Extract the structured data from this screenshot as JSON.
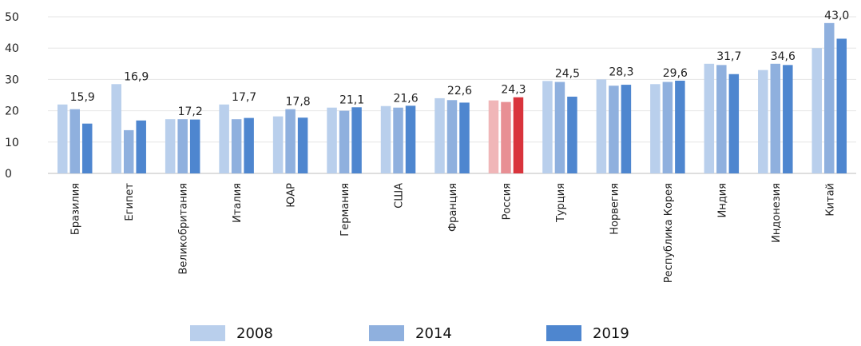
{
  "chart_data": {
    "type": "bar",
    "title": "",
    "xlabel": "",
    "ylabel": "",
    "ylim": [
      0,
      50
    ],
    "yticks": [
      0,
      10,
      20,
      30,
      40,
      50
    ],
    "grid": true,
    "legend_position": "bottom",
    "categories": [
      "Бразилия",
      "Египет",
      "Великобритания",
      "Италия",
      "ЮАР",
      "Германия",
      "США",
      "Франция",
      "Россия",
      "Турция",
      "Норвегия",
      "Республика Корея",
      "Индия",
      "Индонезия",
      "Китай"
    ],
    "series": [
      {
        "name": "2008",
        "color": "#b9cfec",
        "values": [
          22.0,
          28.5,
          17.3,
          22.0,
          18.2,
          21.0,
          21.5,
          24.0,
          23.3,
          29.5,
          30.0,
          28.5,
          35.0,
          33.0,
          40.0
        ]
      },
      {
        "name": "2014",
        "color": "#8fb0de",
        "values": [
          20.5,
          13.8,
          17.3,
          17.3,
          20.5,
          20.0,
          21.0,
          23.4,
          22.8,
          29.2,
          28.0,
          29.2,
          34.6,
          35.0,
          48.0
        ]
      },
      {
        "name": "2019",
        "color": "#4e86cf",
        "values": [
          15.9,
          16.9,
          17.2,
          17.7,
          17.8,
          21.1,
          21.6,
          22.6,
          24.3,
          24.5,
          28.3,
          29.6,
          31.7,
          34.6,
          43.0
        ]
      }
    ],
    "highlight": {
      "category_index": 8,
      "colors": [
        "#f0b6b8",
        "#e88f94",
        "#d9343c"
      ]
    },
    "data_labels": [
      "15,9",
      "16,9",
      "17,2",
      "17,7",
      "17,8",
      "21,1",
      "21,6",
      "22,6",
      "24,3",
      "24,5",
      "28,3",
      "29,6",
      "31,7",
      "34,6",
      "43,0"
    ]
  }
}
